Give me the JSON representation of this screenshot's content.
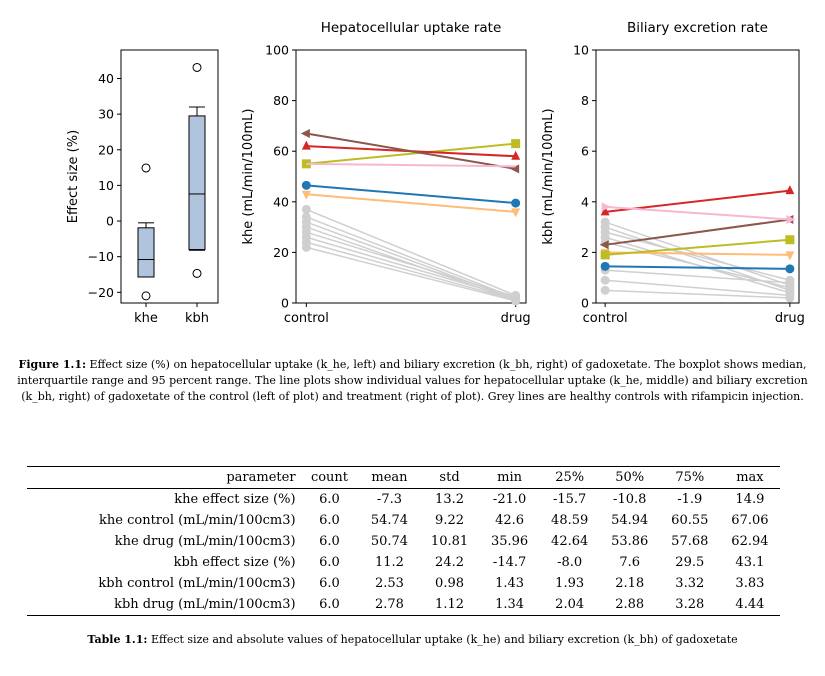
{
  "chart_data": [
    {
      "type": "box",
      "ylabel": "Effect size (%)",
      "categories": [
        "khe",
        "kbh"
      ],
      "ylim": [
        -23,
        48
      ],
      "yticks": [
        -20,
        -10,
        0,
        10,
        20,
        30,
        40
      ],
      "ytick_labels": [
        "−20",
        "−10",
        "0",
        "10",
        "20",
        "30",
        "40"
      ],
      "boxes": [
        {
          "name": "khe",
          "whisker_low": -15.7,
          "q1": -15.7,
          "median": -10.8,
          "q3": -1.9,
          "whisker_high": -0.5,
          "outliers": [
            -21,
            14.9
          ]
        },
        {
          "name": "kbh",
          "whisker_low": -8.2,
          "q1": -8.0,
          "median": 7.6,
          "q3": 29.5,
          "whisker_high": 32.0,
          "outliers": [
            -14.7,
            43.1
          ]
        }
      ],
      "box_color": "#b0c4de"
    },
    {
      "type": "line",
      "title": "Hepatocellular uptake rate",
      "ylabel": "khe (mL/min/100mL)",
      "categories": [
        "control",
        "drug"
      ],
      "ylim": [
        0,
        100
      ],
      "yticks": [
        0,
        20,
        40,
        60,
        80,
        100
      ],
      "grey_series": [
        [
          37,
          3
        ],
        [
          34,
          2
        ],
        [
          32,
          1.5
        ],
        [
          30,
          1
        ],
        [
          28,
          2.5
        ],
        [
          26,
          1.8
        ],
        [
          24,
          1.2
        ],
        [
          22,
          0.8
        ]
      ],
      "series": [
        {
          "values": [
            46.5,
            39.5
          ],
          "color": "#1f77b4",
          "marker": "circle"
        },
        {
          "values": [
            43,
            36
          ],
          "color": "#ffbb78",
          "marker": "tri_down"
        },
        {
          "values": [
            55,
            63
          ],
          "color": "#bcbd22",
          "marker": "square"
        },
        {
          "values": [
            62,
            58
          ],
          "color": "#d62728",
          "marker": "tri_up"
        },
        {
          "values": [
            67,
            53
          ],
          "color": "#8c564b",
          "marker": "tri_left"
        },
        {
          "values": [
            55,
            54
          ],
          "color": "#f7b6d2",
          "marker": "none"
        }
      ]
    },
    {
      "type": "line",
      "title": "Biliary excretion rate",
      "ylabel": "kbh (mL/min/100mL)",
      "categories": [
        "control",
        "drug"
      ],
      "ylim": [
        0,
        10
      ],
      "yticks": [
        0,
        2,
        4,
        6,
        8,
        10
      ],
      "grey_series": [
        [
          3.2,
          0.7
        ],
        [
          3.0,
          0.5
        ],
        [
          2.8,
          0.9
        ],
        [
          2.6,
          0.4
        ],
        [
          2.4,
          0.6
        ],
        [
          1.3,
          0.8
        ],
        [
          0.9,
          0.3
        ],
        [
          0.5,
          0.2
        ]
      ],
      "series": [
        {
          "values": [
            1.45,
            1.35
          ],
          "color": "#1f77b4",
          "marker": "circle"
        },
        {
          "values": [
            2.0,
            1.9
          ],
          "color": "#ffbb78",
          "marker": "tri_down"
        },
        {
          "values": [
            1.9,
            2.5
          ],
          "color": "#bcbd22",
          "marker": "square"
        },
        {
          "values": [
            3.6,
            4.44
          ],
          "color": "#d62728",
          "marker": "tri_up"
        },
        {
          "values": [
            2.3,
            3.3
          ],
          "color": "#8c564b",
          "marker": "tri_left"
        },
        {
          "values": [
            3.8,
            3.3
          ],
          "color": "#f7b6d2",
          "marker": "tri_right"
        }
      ]
    }
  ],
  "figure_caption": {
    "label": "Figure 1.1:",
    "text": "Effect size (%) on hepatocellular uptake (k_he, left) and biliary excretion (k_bh, right) of gadoxetate. The boxplot shows median, interquartile range and 95 percent range. The line plots show individual values for hepatocellular uptake (k_he, middle) and biliary excretion (k_bh, right) of gadoxetate of the control (left of plot) and treatment (right of plot). Grey lines are healthy controls with rifampicin injection."
  },
  "table": {
    "headers": [
      "parameter",
      "count",
      "mean",
      "std",
      "min",
      "25%",
      "50%",
      "75%",
      "max"
    ],
    "rows": [
      [
        "khe effect size (%)",
        "6.0",
        "-7.3",
        "13.2",
        "-21.0",
        "-15.7",
        "-10.8",
        "-1.9",
        "14.9"
      ],
      [
        "khe control (mL/min/100cm3)",
        "6.0",
        "54.74",
        "9.22",
        "42.6",
        "48.59",
        "54.94",
        "60.55",
        "67.06"
      ],
      [
        "khe drug (mL/min/100cm3)",
        "6.0",
        "50.74",
        "10.81",
        "35.96",
        "42.64",
        "53.86",
        "57.68",
        "62.94"
      ],
      [
        "kbh effect size (%)",
        "6.0",
        "11.2",
        "24.2",
        "-14.7",
        "-8.0",
        "7.6",
        "29.5",
        "43.1"
      ],
      [
        "kbh control (mL/min/100cm3)",
        "6.0",
        "2.53",
        "0.98",
        "1.43",
        "1.93",
        "2.18",
        "3.32",
        "3.83"
      ],
      [
        "kbh drug (mL/min/100cm3)",
        "6.0",
        "2.78",
        "1.12",
        "1.34",
        "2.04",
        "2.88",
        "3.28",
        "4.44"
      ]
    ]
  },
  "table_caption": {
    "label": "Table 1.1:",
    "text": "Effect size and absolute values of hepatocellular uptake (k_he) and biliary excretion (k_bh) of gadoxetate"
  }
}
